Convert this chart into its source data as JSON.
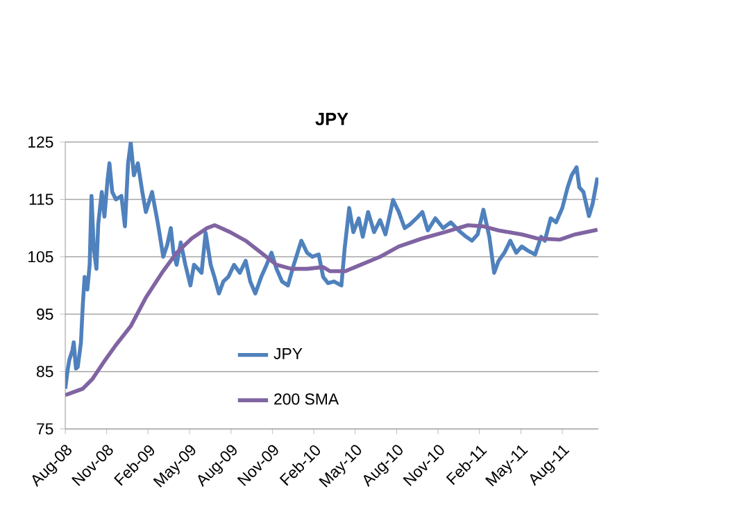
{
  "chart_data": {
    "type": "line",
    "title": "JPY",
    "series": [
      {
        "name": "JPY",
        "color": "#4f81bd",
        "x": [
          "2008-08-01",
          "2008-08-06",
          "2008-08-10",
          "2008-08-17",
          "2008-08-20",
          "2008-08-25",
          "2008-08-29",
          "2008-09-05",
          "2008-09-09",
          "2008-09-13",
          "2008-09-19",
          "2008-09-24",
          "2008-09-28",
          "2008-10-03",
          "2008-10-09",
          "2008-10-13",
          "2008-10-21",
          "2008-10-27",
          "2008-11-03",
          "2008-11-07",
          "2008-11-13",
          "2008-11-21",
          "2008-12-03",
          "2008-12-11",
          "2008-12-18",
          "2008-12-24",
          "2008-12-31",
          "2009-01-09",
          "2009-01-19",
          "2009-01-27",
          "2009-02-09",
          "2009-02-21",
          "2009-03-04",
          "2009-03-13",
          "2009-03-21",
          "2009-03-27",
          "2009-04-03",
          "2009-04-12",
          "2009-04-22",
          "2009-05-03",
          "2009-05-11",
          "2009-05-20",
          "2009-05-28",
          "2009-06-06",
          "2009-06-17",
          "2009-06-25",
          "2009-07-05",
          "2009-07-15",
          "2009-07-26",
          "2009-08-08",
          "2009-08-21",
          "2009-09-03",
          "2009-09-13",
          "2009-09-24",
          "2009-10-07",
          "2009-10-19",
          "2009-10-30",
          "2009-11-10",
          "2009-11-22",
          "2009-12-05",
          "2009-12-18",
          "2010-01-04",
          "2010-01-17",
          "2010-01-29",
          "2010-02-11",
          "2010-02-20",
          "2010-03-02",
          "2010-03-15",
          "2010-04-01",
          "2010-04-08",
          "2010-04-18",
          "2010-04-27",
          "2010-05-09",
          "2010-05-18",
          "2010-05-30",
          "2010-06-12",
          "2010-06-25",
          "2010-07-07",
          "2010-07-24",
          "2010-08-06",
          "2010-08-19",
          "2010-09-01",
          "2010-09-14",
          "2010-09-27",
          "2010-10-09",
          "2010-10-26",
          "2010-11-12",
          "2010-11-29",
          "2010-12-16",
          "2011-01-02",
          "2011-01-15",
          "2011-01-28",
          "2011-02-09",
          "2011-02-21",
          "2011-03-03",
          "2011-03-13",
          "2011-03-26",
          "2011-04-08",
          "2011-04-21",
          "2011-05-03",
          "2011-05-16",
          "2011-06-02",
          "2011-06-15",
          "2011-06-23",
          "2011-07-06",
          "2011-07-18",
          "2011-08-01",
          "2011-08-13",
          "2011-08-22",
          "2011-09-02",
          "2011-09-08",
          "2011-09-17",
          "2011-09-29",
          "2011-10-07",
          "2011-10-18"
        ],
        "values": [
          82,
          85.1,
          87,
          88.7,
          90.1,
          85.5,
          85.8,
          90,
          96.5,
          101.5,
          99.3,
          103.6,
          115.6,
          106.4,
          102.9,
          110.7,
          116.3,
          112,
          118.5,
          121.3,
          116.3,
          115,
          115.6,
          110.3,
          121.3,
          124.9,
          119.2,
          121.3,
          116.3,
          112.8,
          116.3,
          110.7,
          105,
          107.1,
          110,
          105.7,
          103.6,
          107.5,
          103.6,
          100,
          103.6,
          102.9,
          102.2,
          109.2,
          103.6,
          101.5,
          98.6,
          100.7,
          101.5,
          103.6,
          102.2,
          104.3,
          100.7,
          98.6,
          101.5,
          103.6,
          105.7,
          102.9,
          100.7,
          100,
          103.6,
          107.8,
          105.7,
          105,
          105.4,
          101.5,
          100.4,
          100.7,
          100,
          106.4,
          113.5,
          109.3,
          111.7,
          108.5,
          112.8,
          109.3,
          111.4,
          108.9,
          114.9,
          112.8,
          110,
          110.7,
          111.7,
          112.8,
          109.6,
          111.7,
          110,
          111,
          109.6,
          108.5,
          107.8,
          108.9,
          113.2,
          108.5,
          102.2,
          104.3,
          105.7,
          107.8,
          105.7,
          106.8,
          106.1,
          105.4,
          108.5,
          107.8,
          111.7,
          111,
          113.5,
          117.1,
          119.2,
          120.6,
          117.1,
          116.3,
          112.1,
          114.2,
          118.8
        ]
      },
      {
        "name": "200 SMA",
        "color": "#8064a2",
        "x": [
          "2008-08-01",
          "2008-09-09",
          "2008-09-30",
          "2008-10-25",
          "2008-11-19",
          "2008-12-24",
          "2009-01-27",
          "2009-03-01",
          "2009-04-03",
          "2009-05-06",
          "2009-06-09",
          "2009-06-26",
          "2009-07-30",
          "2009-09-03",
          "2009-10-07",
          "2009-11-10",
          "2009-12-13",
          "2010-01-17",
          "2010-02-20",
          "2010-03-06",
          "2010-04-10",
          "2010-05-13",
          "2010-06-25",
          "2010-08-06",
          "2010-09-27",
          "2010-11-16",
          "2011-01-06",
          "2011-02-09",
          "2011-03-13",
          "2011-05-03",
          "2011-06-06",
          "2011-07-27",
          "2011-08-30",
          "2011-10-18"
        ],
        "values": [
          80.9,
          82,
          83.7,
          86.6,
          89.4,
          92.9,
          97.9,
          102.2,
          105.7,
          108.2,
          110,
          110.5,
          109.3,
          107.8,
          105.7,
          103.6,
          102.9,
          102.9,
          103.2,
          102.5,
          102.5,
          103.6,
          105,
          106.8,
          108.2,
          109.3,
          110.5,
          110.3,
          109.6,
          108.9,
          108.2,
          108,
          108.9,
          109.7
        ]
      }
    ],
    "xlim": [
      "2008-08-01",
      "2011-10-20"
    ],
    "xticks": [
      {
        "value": "2008-08-01",
        "label": "Aug-08"
      },
      {
        "value": "2008-11-01",
        "label": "Nov-08"
      },
      {
        "value": "2009-02-01",
        "label": "Feb-09"
      },
      {
        "value": "2009-05-01",
        "label": "May-09"
      },
      {
        "value": "2009-08-01",
        "label": "Aug-09"
      },
      {
        "value": "2009-11-01",
        "label": "Nov-09"
      },
      {
        "value": "2010-02-01",
        "label": "Feb-10"
      },
      {
        "value": "2010-05-01",
        "label": "May-10"
      },
      {
        "value": "2010-08-01",
        "label": "Aug-10"
      },
      {
        "value": "2010-11-01",
        "label": "Nov-10"
      },
      {
        "value": "2011-02-01",
        "label": "Feb-11"
      },
      {
        "value": "2011-05-01",
        "label": "May-11"
      },
      {
        "value": "2011-08-01",
        "label": "Aug-11"
      }
    ],
    "ylim": [
      75,
      125
    ],
    "yticks": [
      75,
      85,
      95,
      105,
      115,
      125
    ],
    "grid": "y",
    "legend": "bottom",
    "marker": "none",
    "line_style": "solid"
  }
}
